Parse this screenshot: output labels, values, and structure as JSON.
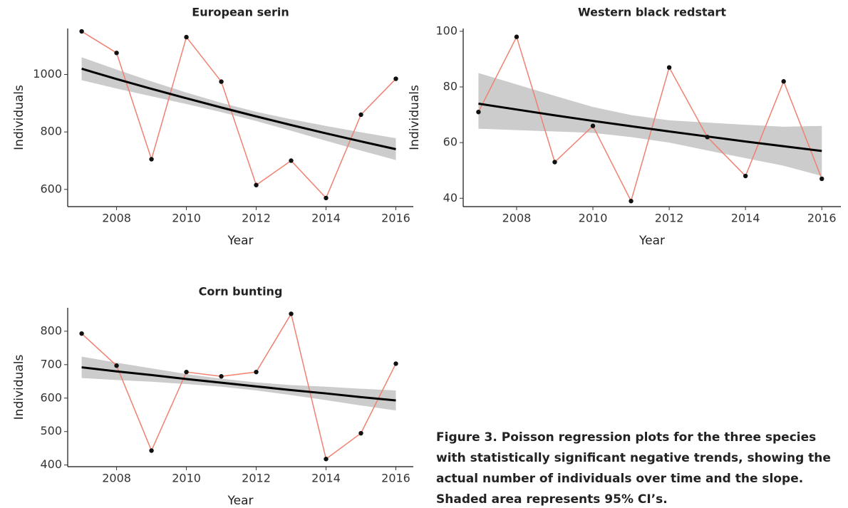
{
  "chart_data": [
    {
      "type": "line",
      "title": "European serin",
      "x_label": "Year",
      "y_label": "Individuals",
      "x": [
        2007,
        2008,
        2009,
        2010,
        2011,
        2012,
        2013,
        2014,
        2015,
        2016
      ],
      "xlim": [
        2006.6,
        2016.5
      ],
      "xticks": [
        2008,
        2010,
        2012,
        2014,
        2016
      ],
      "ylim": [
        540,
        1160
      ],
      "yticks": [
        600,
        800,
        1000
      ],
      "series": [
        {
          "color": "#f08070",
          "values": [
            1150,
            1075,
            705,
            1130,
            975,
            615,
            700,
            570,
            860,
            985
          ]
        }
      ],
      "trend": {
        "color": "#000000",
        "values": [
          1020,
          984,
          950,
          917,
          885,
          854,
          824,
          795,
          767,
          740
        ]
      },
      "band": {
        "color": "#cccccc",
        "lower": [
          980,
          951,
          924,
          897,
          869,
          838,
          804,
          769,
          735,
          702
        ],
        "upper": [
          1060,
          1017,
          976,
          937,
          901,
          870,
          844,
          821,
          799,
          778
        ]
      }
    },
    {
      "type": "line",
      "title": "Western black redstart",
      "x_label": "Year",
      "y_label": "Individuals",
      "x": [
        2007,
        2008,
        2009,
        2010,
        2011,
        2012,
        2013,
        2014,
        2015,
        2016
      ],
      "xlim": [
        2006.6,
        2016.5
      ],
      "xticks": [
        2008,
        2010,
        2012,
        2014,
        2016
      ],
      "ylim": [
        37,
        101
      ],
      "yticks": [
        40,
        60,
        80,
        100
      ],
      "series": [
        {
          "color": "#f08070",
          "values": [
            71,
            98,
            53,
            66,
            39,
            87,
            62,
            48,
            82,
            47
          ]
        }
      ],
      "trend": {
        "color": "#000000",
        "values": [
          74,
          71.9,
          69.8,
          67.8,
          65.9,
          64,
          62.2,
          60.4,
          58.7,
          57
        ]
      },
      "band": {
        "color": "#cccccc",
        "lower": [
          65,
          64.5,
          64,
          63.5,
          62,
          60,
          57.2,
          54.4,
          51.7,
          48
        ],
        "upper": [
          85,
          80.9,
          76.8,
          72.8,
          69.9,
          68,
          67.2,
          66.4,
          65.7,
          66
        ]
      }
    },
    {
      "type": "line",
      "title": "Corn bunting",
      "x_label": "Year",
      "y_label": "Individuals",
      "x": [
        2007,
        2008,
        2009,
        2010,
        2011,
        2012,
        2013,
        2014,
        2015,
        2016
      ],
      "xlim": [
        2006.6,
        2016.5
      ],
      "xticks": [
        2008,
        2010,
        2012,
        2014,
        2016
      ],
      "ylim": [
        395,
        870
      ],
      "yticks": [
        400,
        500,
        600,
        700,
        800
      ],
      "series": [
        {
          "color": "#f08070",
          "values": [
            793,
            697,
            443,
            678,
            665,
            678,
            852,
            418,
            495,
            703
          ]
        }
      ],
      "trend": {
        "color": "#000000",
        "values": [
          692,
          680,
          669,
          657,
          646,
          635,
          624,
          614,
          603,
          593
        ]
      },
      "band": {
        "color": "#cccccc",
        "lower": [
          660,
          654,
          649,
          642,
          634,
          623,
          609,
          594,
          578,
          563
        ],
        "upper": [
          724,
          706,
          689,
          672,
          658,
          647,
          639,
          634,
          628,
          623
        ]
      }
    }
  ],
  "caption": "Figure 3. Poisson regression plots for the three species with statistically significant negative trends, showing the actual number of individuals over time and the slope. Shaded area represents 95% CI’s."
}
